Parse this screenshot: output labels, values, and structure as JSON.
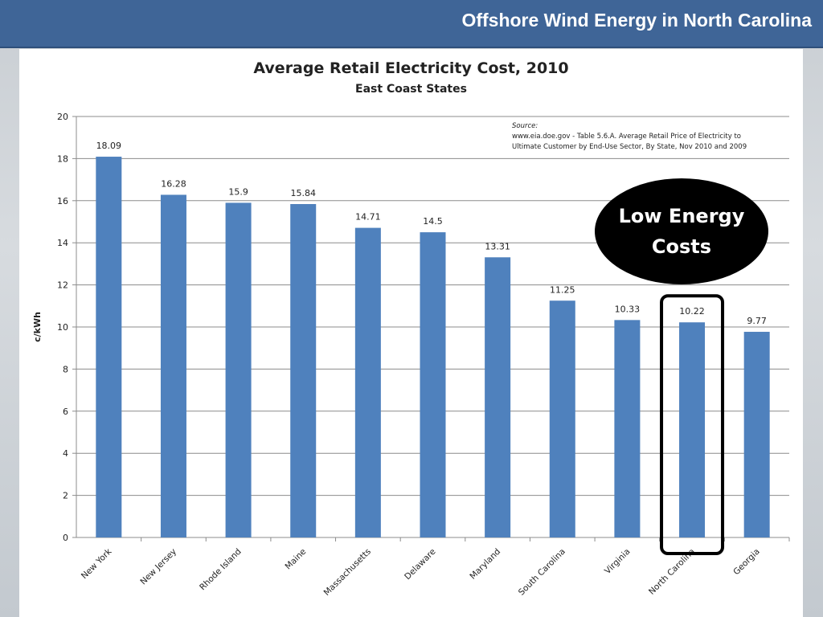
{
  "header": {
    "title": "Offshore Wind Energy in North Carolina"
  },
  "colors": {
    "bar": "#4f81bd",
    "header": "#3f6597",
    "highlight": "#000000"
  },
  "source": {
    "label": "Source:",
    "line1": "www.eia.doe.gov - Table 5.6.A. Average Retail Price of Electricity to",
    "line2": "Ultimate Customer by End-Use Sector, By State, Nov 2010 and 2009"
  },
  "callout": {
    "text": "Low Energy Costs",
    "highlighted_category": "North Carolina"
  },
  "chart_data": {
    "type": "bar",
    "title": "Average Retail Electricity Cost, 2010",
    "subtitle": "East Coast States",
    "xlabel": "",
    "ylabel": "c/kWh",
    "ylim": [
      0,
      20
    ],
    "yticks": [
      0,
      2,
      4,
      6,
      8,
      10,
      12,
      14,
      16,
      18,
      20
    ],
    "grid": true,
    "categories": [
      "New York",
      "New Jersey",
      "Rhode Island",
      "Maine",
      "Massachusetts",
      "Delaware",
      "Maryland",
      "South Carolina",
      "Virginia",
      "North Carolina",
      "Georgia"
    ],
    "values": [
      18.09,
      16.28,
      15.9,
      15.84,
      14.71,
      14.5,
      13.31,
      11.25,
      10.33,
      10.22,
      9.77
    ],
    "data_labels": [
      "18.09",
      "16.28",
      "15.9",
      "15.84",
      "14.71",
      "14.5",
      "13.31",
      "11.25",
      "10.33",
      "10.22",
      "9.77"
    ]
  }
}
